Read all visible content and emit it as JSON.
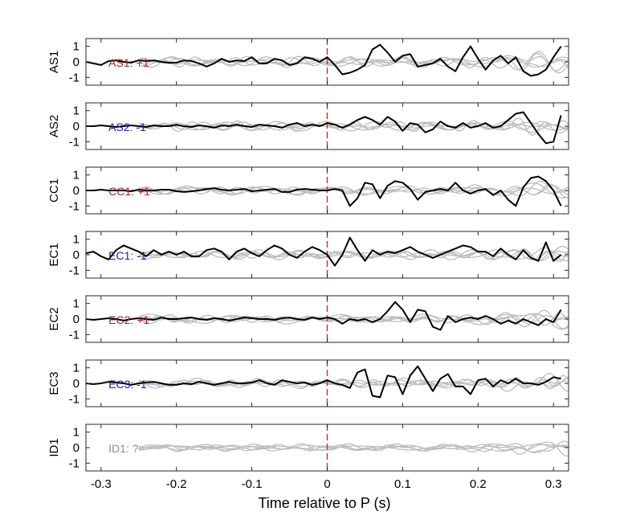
{
  "chart_data": {
    "type": "line",
    "xlabel": "Time relative to P (s)",
    "xlim": [
      -0.32,
      0.32
    ],
    "ylim": [
      -1.5,
      1.5
    ],
    "x_ticks": [
      -0.3,
      -0.2,
      -0.1,
      0,
      0.1,
      0.2,
      0.3
    ],
    "x_tick_labels": [
      "-0.3",
      "-0.2",
      "-0.1",
      "0",
      "0.1",
      "0.2",
      "0.3"
    ],
    "y_ticks": [
      1,
      0,
      -1
    ],
    "y_tick_labels": [
      "1",
      "0",
      "-1"
    ],
    "p_marker_x": 0,
    "colors": {
      "trace": "#000000",
      "background": "#bdbdbd",
      "marker": "#e8221c",
      "positive": "#b22222",
      "negative": "#1a1aaa",
      "unknown": "#8c8c8c"
    },
    "panels": [
      {
        "station": "AS1",
        "label": "AS1: +1",
        "polarity": "positive",
        "x": [
          -0.32,
          -0.31,
          -0.3,
          -0.29,
          -0.28,
          -0.27,
          -0.26,
          -0.25,
          -0.24,
          -0.23,
          -0.22,
          -0.21,
          -0.2,
          -0.19,
          -0.18,
          -0.17,
          -0.16,
          -0.15,
          -0.14,
          -0.13,
          -0.12,
          -0.11,
          -0.1,
          -0.09,
          -0.08,
          -0.07,
          -0.06,
          -0.05,
          -0.04,
          -0.03,
          -0.02,
          -0.01,
          0,
          0.01,
          0.02,
          0.03,
          0.04,
          0.05,
          0.06,
          0.07,
          0.08,
          0.09,
          0.1,
          0.11,
          0.12,
          0.13,
          0.14,
          0.15,
          0.16,
          0.17,
          0.18,
          0.19,
          0.2,
          0.21,
          0.22,
          0.23,
          0.24,
          0.25,
          0.26,
          0.27,
          0.28,
          0.29,
          0.3,
          0.31
        ],
        "y": [
          0.0,
          -0.1,
          -0.2,
          0.05,
          0.1,
          0.0,
          -0.05,
          0.1,
          0.05,
          0.1,
          0.0,
          -0.05,
          -0.05,
          0.1,
          0.05,
          -0.1,
          -0.3,
          -0.1,
          0.2,
          0.0,
          0.1,
          0.05,
          0.3,
          -0.1,
          -0.1,
          0.2,
          0.1,
          -0.2,
          -0.1,
          0.3,
          0.2,
          0.0,
          0.3,
          -0.2,
          -0.8,
          -0.7,
          -0.5,
          -0.2,
          0.8,
          1.1,
          0.6,
          0.0,
          0.4,
          0.5,
          -0.3,
          -0.2,
          -0.1,
          0.2,
          -0.3,
          -0.6,
          0.3,
          1.0,
          0.2,
          -0.5,
          0.1,
          0.4,
          -0.1,
          0.3,
          -0.6,
          -0.9,
          -0.8,
          -0.5,
          0.3,
          1.0
        ]
      },
      {
        "station": "AS2",
        "label": "AS2: -1",
        "polarity": "negative",
        "x": [
          -0.32,
          -0.31,
          -0.3,
          -0.29,
          -0.28,
          -0.27,
          -0.26,
          -0.25,
          -0.24,
          -0.23,
          -0.22,
          -0.21,
          -0.2,
          -0.19,
          -0.18,
          -0.17,
          -0.16,
          -0.15,
          -0.14,
          -0.13,
          -0.12,
          -0.11,
          -0.1,
          -0.09,
          -0.08,
          -0.07,
          -0.06,
          -0.05,
          -0.04,
          -0.03,
          -0.02,
          -0.01,
          0,
          0.01,
          0.02,
          0.03,
          0.04,
          0.05,
          0.06,
          0.07,
          0.08,
          0.09,
          0.1,
          0.11,
          0.12,
          0.13,
          0.14,
          0.15,
          0.16,
          0.17,
          0.18,
          0.19,
          0.2,
          0.21,
          0.22,
          0.23,
          0.24,
          0.25,
          0.26,
          0.27,
          0.28,
          0.29,
          0.3,
          0.31
        ],
        "y": [
          0.0,
          0.0,
          0.05,
          0.0,
          -0.05,
          0.0,
          0.05,
          0.0,
          -0.05,
          0.05,
          0.0,
          0.0,
          0.1,
          0.0,
          -0.05,
          0.05,
          0.0,
          -0.1,
          0.05,
          0.0,
          0.1,
          0.0,
          -0.05,
          0.1,
          0.05,
          0.0,
          -0.1,
          0.1,
          0.2,
          0.0,
          0.1,
          0.0,
          0.2,
          0.1,
          -0.1,
          0.1,
          0.4,
          0.6,
          0.4,
          0.1,
          0.6,
          0.3,
          -0.3,
          0.2,
          0.1,
          -0.4,
          -0.2,
          0.3,
          0.0,
          -0.1,
          0.2,
          -0.1,
          0.0,
          0.2,
          -0.1,
          0.0,
          0.4,
          0.8,
          0.9,
          0.2,
          -0.5,
          -1.1,
          -1.0,
          0.7
        ]
      },
      {
        "station": "CC1",
        "label": "CC1: +1",
        "polarity": "positive",
        "x": [
          -0.32,
          -0.31,
          -0.3,
          -0.29,
          -0.28,
          -0.27,
          -0.26,
          -0.25,
          -0.24,
          -0.23,
          -0.22,
          -0.21,
          -0.2,
          -0.19,
          -0.18,
          -0.17,
          -0.16,
          -0.15,
          -0.14,
          -0.13,
          -0.12,
          -0.11,
          -0.1,
          -0.09,
          -0.08,
          -0.07,
          -0.06,
          -0.05,
          -0.04,
          -0.03,
          -0.02,
          -0.01,
          0,
          0.01,
          0.02,
          0.03,
          0.04,
          0.05,
          0.06,
          0.07,
          0.08,
          0.09,
          0.1,
          0.11,
          0.12,
          0.13,
          0.14,
          0.15,
          0.16,
          0.17,
          0.18,
          0.19,
          0.2,
          0.21,
          0.22,
          0.23,
          0.24,
          0.25,
          0.26,
          0.27,
          0.28,
          0.29,
          0.3,
          0.31
        ],
        "y": [
          0.0,
          0.0,
          0.05,
          0.0,
          0.0,
          0.0,
          -0.05,
          0.05,
          0.0,
          0.0,
          0.05,
          0.05,
          -0.05,
          -0.1,
          -0.05,
          0.0,
          0.1,
          0.15,
          0.05,
          0.0,
          0.05,
          0.1,
          -0.05,
          0.0,
          0.05,
          0.1,
          -0.1,
          -0.1,
          0.05,
          0.1,
          0.05,
          0.0,
          0.0,
          0.1,
          0.0,
          -1.0,
          -0.5,
          0.5,
          0.4,
          -0.5,
          0.3,
          0.6,
          0.5,
          0.1,
          -0.6,
          -0.1,
          0.0,
          0.1,
          0.0,
          0.5,
          0.0,
          -0.2,
          0.0,
          0.1,
          -0.3,
          0.0,
          -0.6,
          -1.0,
          0.2,
          0.8,
          0.9,
          0.6,
          0.0,
          -1.0
        ]
      },
      {
        "station": "EC1",
        "label": "EC1: -1",
        "polarity": "negative",
        "x": [
          -0.32,
          -0.31,
          -0.3,
          -0.29,
          -0.28,
          -0.27,
          -0.26,
          -0.25,
          -0.24,
          -0.23,
          -0.22,
          -0.21,
          -0.2,
          -0.19,
          -0.18,
          -0.17,
          -0.16,
          -0.15,
          -0.14,
          -0.13,
          -0.12,
          -0.11,
          -0.1,
          -0.09,
          -0.08,
          -0.07,
          -0.06,
          -0.05,
          -0.04,
          -0.03,
          -0.02,
          -0.01,
          0,
          0.01,
          0.02,
          0.03,
          0.04,
          0.05,
          0.06,
          0.07,
          0.08,
          0.09,
          0.1,
          0.11,
          0.12,
          0.13,
          0.14,
          0.15,
          0.16,
          0.17,
          0.18,
          0.19,
          0.2,
          0.21,
          0.22,
          0.23,
          0.24,
          0.25,
          0.26,
          0.27,
          0.28,
          0.29,
          0.3,
          0.31
        ],
        "y": [
          0.1,
          0.2,
          -0.1,
          -0.3,
          0.3,
          0.6,
          0.4,
          0.2,
          -0.1,
          0.3,
          0.0,
          0.2,
          0.0,
          0.2,
          -0.1,
          -0.1,
          0.3,
          0.4,
          0.2,
          -0.3,
          0.2,
          0.4,
          0.1,
          -0.1,
          0.3,
          0.6,
          0.4,
          0.0,
          -0.2,
          0.2,
          0.5,
          0.3,
          0.0,
          -0.7,
          0.0,
          1.1,
          0.3,
          -0.4,
          0.3,
          0.0,
          0.2,
          0.1,
          0.3,
          0.5,
          0.2,
          0.0,
          -0.2,
          0.0,
          0.2,
          0.4,
          0.6,
          0.5,
          0.2,
          0.2,
          -0.1,
          0.4,
          0.0,
          -0.3,
          0.3,
          -0.2,
          -0.4,
          0.8,
          -0.4,
          0.0
        ]
      },
      {
        "station": "EC2",
        "label": "EC2: +1",
        "polarity": "positive",
        "x": [
          -0.32,
          -0.31,
          -0.3,
          -0.29,
          -0.28,
          -0.27,
          -0.26,
          -0.25,
          -0.24,
          -0.23,
          -0.22,
          -0.21,
          -0.2,
          -0.19,
          -0.18,
          -0.17,
          -0.16,
          -0.15,
          -0.14,
          -0.13,
          -0.12,
          -0.11,
          -0.1,
          -0.09,
          -0.08,
          -0.07,
          -0.06,
          -0.05,
          -0.04,
          -0.03,
          -0.02,
          -0.01,
          0,
          0.01,
          0.02,
          0.03,
          0.04,
          0.05,
          0.06,
          0.07,
          0.08,
          0.09,
          0.1,
          0.11,
          0.12,
          0.13,
          0.14,
          0.15,
          0.16,
          0.17,
          0.18,
          0.19,
          0.2,
          0.21,
          0.22,
          0.23,
          0.24,
          0.25,
          0.26,
          0.27,
          0.28,
          0.29,
          0.3,
          0.31
        ],
        "y": [
          0.0,
          -0.05,
          0.0,
          0.05,
          0.0,
          -0.1,
          0.0,
          0.05,
          0.0,
          -0.05,
          0.1,
          0.0,
          0.0,
          0.05,
          0.1,
          0.0,
          -0.05,
          0.05,
          0.0,
          -0.1,
          0.0,
          0.1,
          0.05,
          0.0,
          0.0,
          -0.05,
          0.05,
          0.1,
          0.0,
          -0.05,
          0.1,
          0.0,
          0.1,
          0.0,
          -0.3,
          0.0,
          -0.1,
          0.0,
          -0.2,
          0.0,
          0.5,
          1.1,
          0.6,
          -0.2,
          0.6,
          0.5,
          -0.5,
          -0.7,
          0.2,
          -0.2,
          0.0,
          0.1,
          0.0,
          0.2,
          0.0,
          -0.3,
          -0.1,
          -0.3,
          0.0,
          -0.2,
          -0.4,
          0.0,
          -0.2,
          0.6
        ]
      },
      {
        "station": "EC3",
        "label": "EC3: -1",
        "polarity": "negative",
        "x": [
          -0.32,
          -0.31,
          -0.3,
          -0.29,
          -0.28,
          -0.27,
          -0.26,
          -0.25,
          -0.24,
          -0.23,
          -0.22,
          -0.21,
          -0.2,
          -0.19,
          -0.18,
          -0.17,
          -0.16,
          -0.15,
          -0.14,
          -0.13,
          -0.12,
          -0.11,
          -0.1,
          -0.09,
          -0.08,
          -0.07,
          -0.06,
          -0.05,
          -0.04,
          -0.03,
          -0.02,
          -0.01,
          0,
          0.01,
          0.02,
          0.03,
          0.04,
          0.05,
          0.06,
          0.07,
          0.08,
          0.09,
          0.1,
          0.11,
          0.12,
          0.13,
          0.14,
          0.15,
          0.16,
          0.17,
          0.18,
          0.19,
          0.2,
          0.21,
          0.22,
          0.23,
          0.24,
          0.25,
          0.26,
          0.27,
          0.28,
          0.29,
          0.3,
          0.31
        ],
        "y": [
          0.0,
          -0.05,
          0.0,
          0.1,
          0.05,
          0.0,
          -0.1,
          0.0,
          0.05,
          0.1,
          0.0,
          -0.1,
          -0.1,
          0.0,
          -0.05,
          0.1,
          0.0,
          -0.1,
          0.0,
          0.1,
          0.0,
          0.0,
          0.05,
          0.2,
          0.0,
          -0.1,
          0.2,
          0.1,
          0.0,
          0.05,
          -0.1,
          0.0,
          0.2,
          0.0,
          -0.1,
          -0.3,
          0.7,
          0.9,
          -0.8,
          -0.9,
          0.5,
          0.4,
          -0.7,
          0.5,
          1.1,
          0.3,
          -0.5,
          0.3,
          0.6,
          -0.2,
          -0.2,
          -0.7,
          0.2,
          0.3,
          -0.2,
          0.2,
          0.0,
          0.3,
          0.0,
          0.0,
          -0.1,
          0.1,
          0.4,
          0.3
        ]
      },
      {
        "station": "ID1",
        "label": "ID1: ?",
        "polarity": "unknown",
        "x": [],
        "y": []
      }
    ]
  }
}
